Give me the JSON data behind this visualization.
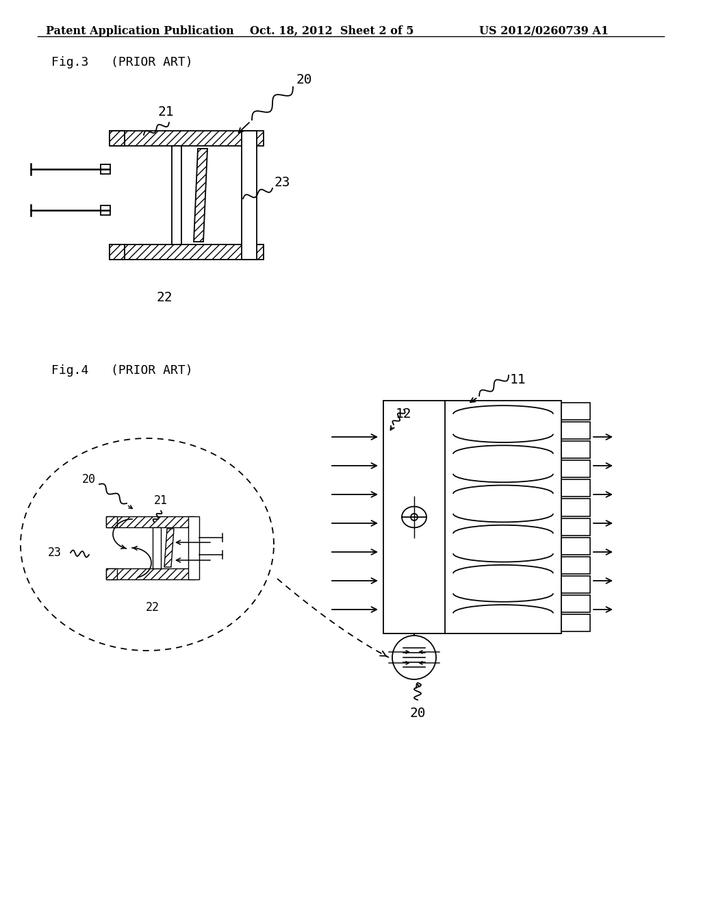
{
  "bg_color": "#ffffff",
  "header_left": "Patent Application Publication",
  "header_center": "Oct. 18, 2012  Sheet 2 of 5",
  "header_right": "US 2012/0260739 A1",
  "fig3_label": "Fig.3   (PRIOR ART)",
  "fig4_label": "Fig.4   (PRIOR ART)",
  "line_color": "#000000"
}
